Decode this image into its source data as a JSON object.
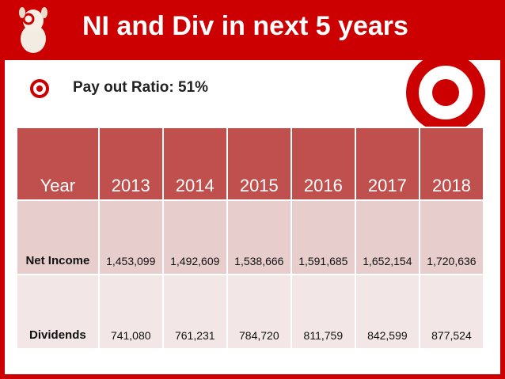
{
  "header": {
    "title": "NI and Div in next 5 years"
  },
  "bullet": "Pay out Ratio: 51%",
  "table": {
    "header": [
      "Year",
      "2013",
      "2014",
      "2015",
      "2016",
      "2017",
      "2018"
    ],
    "rows": [
      [
        "Net Income",
        "1,453,099",
        "1,492,609",
        "1,538,666",
        "1,591,685",
        "1,652,154",
        "1,720,636"
      ],
      [
        "Dividends",
        "741,080",
        "761,231",
        "784,720",
        "811,759",
        "842,599",
        "877,524"
      ]
    ]
  }
}
